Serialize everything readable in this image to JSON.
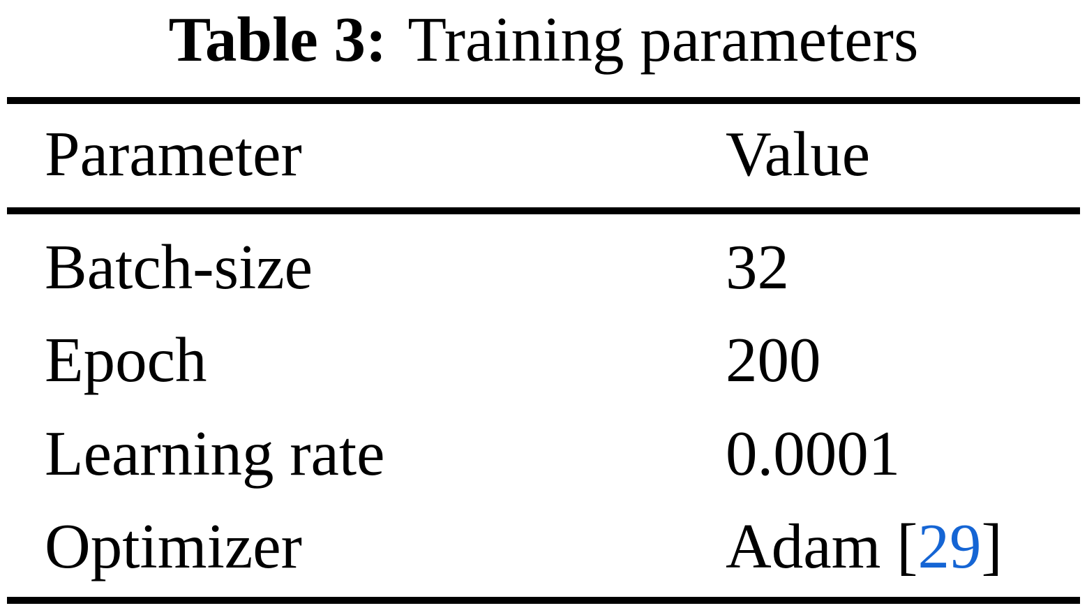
{
  "caption": {
    "label": "Table 3:",
    "text": "Training parameters"
  },
  "table": {
    "headers": [
      "Parameter",
      "Value"
    ],
    "rows": [
      {
        "param": "Batch-size",
        "value": "32"
      },
      {
        "param": "Epoch",
        "value": "200"
      },
      {
        "param": "Learning rate",
        "value": "0.0001"
      },
      {
        "param": "Optimizer",
        "value_pre": "Adam [",
        "citation": "29",
        "value_post": "]"
      }
    ]
  },
  "colors": {
    "text": "#000000",
    "background": "#ffffff",
    "rule": "#000000",
    "citation_blue": "#1565d4"
  }
}
